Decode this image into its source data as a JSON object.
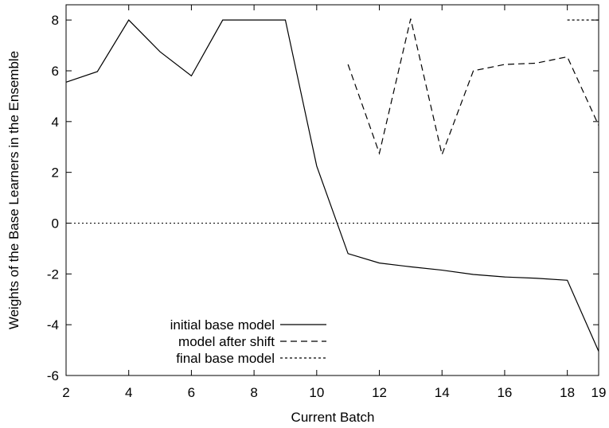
{
  "chart_data": {
    "type": "line",
    "title": "",
    "xlabel": "Current Batch",
    "ylabel": "Weights of the Base Learners in the Ensemble",
    "xlim": [
      2,
      19
    ],
    "ylim": [
      -6,
      8.6
    ],
    "xticks": [
      2,
      4,
      6,
      8,
      10,
      12,
      14,
      16,
      18,
      19
    ],
    "yticks": [
      -6,
      -4,
      -2,
      0,
      2,
      4,
      6,
      8
    ],
    "grid": false,
    "legend_position": "bottom-left",
    "zero_line": true,
    "series": [
      {
        "name": "initial base model",
        "dash": "solid",
        "x": [
          2,
          3,
          4,
          5,
          6,
          7,
          8,
          9,
          10,
          11,
          12,
          13,
          14,
          15,
          16,
          17,
          18,
          19
        ],
        "y": [
          5.55,
          5.97,
          8.0,
          6.75,
          5.8,
          8.0,
          8.0,
          8.0,
          2.25,
          -1.2,
          -1.57,
          -1.72,
          -1.85,
          -2.02,
          -2.12,
          -2.17,
          -2.25,
          -5.05
        ]
      },
      {
        "name": "model after shift",
        "dash": "dashed",
        "x": [
          11,
          12,
          13,
          14,
          15,
          16,
          17,
          18,
          19
        ],
        "y": [
          6.25,
          2.75,
          8.05,
          2.7,
          6.0,
          6.25,
          6.3,
          6.55,
          3.85
        ]
      },
      {
        "name": "final base model",
        "dash": "dotted",
        "x": [
          18,
          19
        ],
        "y": [
          8.0,
          8.0
        ]
      }
    ]
  }
}
